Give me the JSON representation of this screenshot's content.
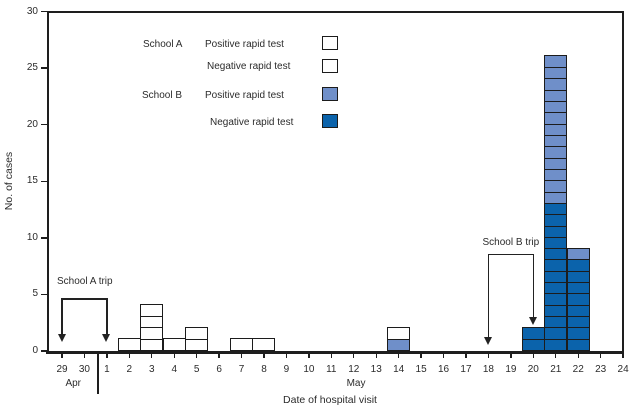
{
  "chart_data": {
    "type": "bar",
    "subtype": "stacked-unit-epidemic-curve",
    "ylabel": "No. of cases",
    "xlabel": "Date of hospital visit",
    "ylim": [
      0,
      30
    ],
    "yticks": [
      0,
      5,
      10,
      15,
      20,
      25,
      30
    ],
    "xticklabels": [
      "29",
      "30",
      "1",
      "2",
      "3",
      "4",
      "5",
      "6",
      "7",
      "8",
      "9",
      "10",
      "11",
      "12",
      "13",
      "14",
      "15",
      "16",
      "17",
      "18",
      "19",
      "20",
      "21",
      "22",
      "23",
      "24"
    ],
    "months": [
      {
        "label": "Apr",
        "center_slot": 0.5
      },
      {
        "label": "May",
        "center_slot": 13.1
      }
    ],
    "month_separator_slot": 1.6,
    "grid": false,
    "colors": {
      "a_pos": "#ffffff",
      "a_neg": "hatch",
      "b_pos": "#6f8fc9",
      "b_neg": "#0b63ab",
      "outline": "#1c1c1c"
    },
    "legend": {
      "groups": [
        {
          "name": "School A",
          "items": [
            {
              "label": "Positive rapid test",
              "key": "a_pos"
            },
            {
              "label": "Negative rapid test",
              "key": "a_neg"
            }
          ]
        },
        {
          "name": "School B",
          "items": [
            {
              "label": "Positive rapid test",
              "key": "b_pos"
            },
            {
              "label": "Negative rapid test",
              "key": "b_neg"
            }
          ]
        }
      ]
    },
    "bars": [
      {
        "date": "May 2",
        "slot": 3,
        "segments": [
          {
            "type": "a_neg",
            "count": 1
          }
        ]
      },
      {
        "date": "May 3",
        "slot": 4,
        "segments": [
          {
            "type": "a_neg",
            "count": 1
          },
          {
            "type": "a_pos",
            "count": 3
          }
        ]
      },
      {
        "date": "May 4",
        "slot": 5,
        "segments": [
          {
            "type": "a_pos",
            "count": 1
          }
        ]
      },
      {
        "date": "May 5",
        "slot": 6,
        "segments": [
          {
            "type": "a_neg",
            "count": 1
          },
          {
            "type": "a_pos",
            "count": 1
          }
        ]
      },
      {
        "date": "May 7",
        "slot": 8,
        "segments": [
          {
            "type": "a_pos",
            "count": 1
          }
        ]
      },
      {
        "date": "May 8",
        "slot": 9,
        "segments": [
          {
            "type": "a_pos",
            "count": 1
          }
        ]
      },
      {
        "date": "May 14",
        "slot": 15,
        "segments": [
          {
            "type": "b_pos",
            "count": 1
          },
          {
            "type": "a_pos",
            "count": 1
          }
        ]
      },
      {
        "date": "May 20",
        "slot": 21,
        "segments": [
          {
            "type": "b_neg",
            "count": 2
          }
        ]
      },
      {
        "date": "May 21",
        "slot": 22,
        "segments": [
          {
            "type": "b_neg",
            "count": 13
          },
          {
            "type": "b_pos",
            "count": 13
          }
        ]
      },
      {
        "date": "May 22",
        "slot": 23,
        "segments": [
          {
            "type": "b_neg",
            "count": 8
          },
          {
            "type": "b_pos",
            "count": 1
          }
        ]
      }
    ],
    "annotations": [
      {
        "label": "School A trip",
        "from_slot": 0,
        "to_slot": 2,
        "line_y_units": 4.65,
        "arrow_tip_units": [
          0.8,
          0.8
        ],
        "label_align": "left"
      },
      {
        "label": "School B trip",
        "from_slot": 19,
        "to_slot": 21,
        "line_y_units": 8.6,
        "arrow_tip_units": [
          0.55,
          2.3
        ],
        "label_align": "center"
      }
    ]
  }
}
